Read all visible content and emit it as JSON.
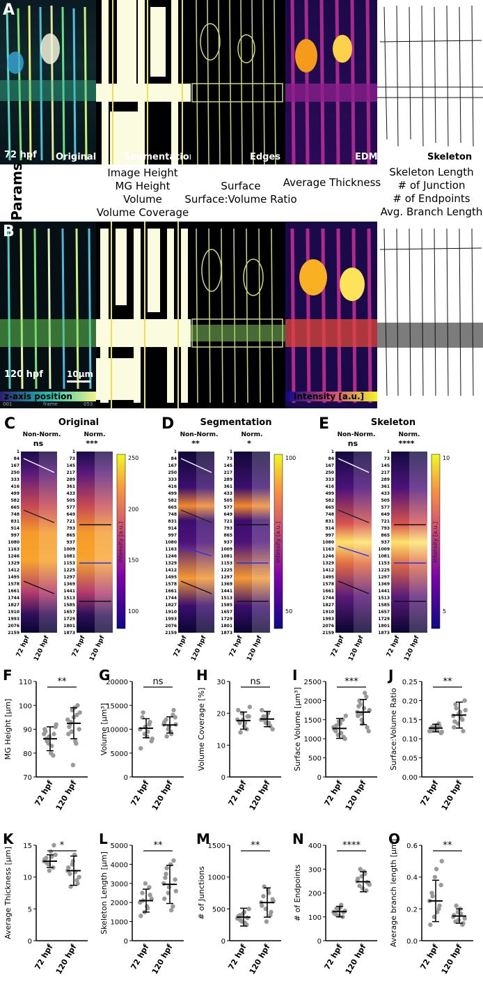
{
  "panels": {
    "A": "A",
    "B": "B",
    "C": "C",
    "D": "D",
    "E": "E",
    "F": "F",
    "G": "G",
    "H": "H",
    "I": "I",
    "J": "J",
    "K": "K",
    "L": "L",
    "M": "M",
    "N": "N",
    "O": "O"
  },
  "rowA": {
    "time": "72 hpf",
    "labels": [
      "Original",
      "Segmentation",
      "Edges",
      "EDM",
      "Skeleton"
    ]
  },
  "rowB": {
    "time": "120 hpf",
    "scale": "10µm",
    "zaxis": "z-axis position",
    "intensity": "Intensity [a.u.]",
    "frame_start": "001",
    "frame_mid": "frame",
    "frame_end": "053"
  },
  "params": {
    "title": "Params",
    "col1": [
      "Image Height",
      "MG Height",
      "Volume",
      "Volume Coverage"
    ],
    "col2": [
      "Surface",
      "Surface:Volume Ratio"
    ],
    "col3": [
      "Average Thickness"
    ],
    "col4": [
      "Skeleton Length",
      "# of Junction",
      "# of Endpoints",
      "Avg. Branch Length"
    ]
  },
  "heatmaps": [
    {
      "title": "Original",
      "sub_left": "Non-Norm.",
      "sub_right": "Norm.",
      "sig_left": "ns",
      "sig_right": "***",
      "colorbar_ticks": [
        "250",
        "200",
        "150",
        "100"
      ],
      "colorbar_label": "Intensity [a.u.]"
    },
    {
      "title": "Segmentation",
      "sub_left": "Non-Norm.",
      "sub_right": "Norm.",
      "sig_left": "**",
      "sig_right": "*",
      "colorbar_ticks": [
        "100",
        "50"
      ],
      "colorbar_label": "Intensity [a.u.]"
    },
    {
      "title": "Skeleton",
      "sub_left": "Non-Norm.",
      "sub_right": "Norm.",
      "sig_left": "ns",
      "sig_right": "****",
      "colorbar_ticks": [
        "10",
        "5"
      ],
      "colorbar_label": "Intensity [a.u.]"
    }
  ],
  "hm_left_ticks": [
    "1",
    "84",
    "167",
    "250",
    "333",
    "416",
    "499",
    "582",
    "665",
    "748",
    "831",
    "914",
    "997",
    "1080",
    "1163",
    "1246",
    "1329",
    "1412",
    "1495",
    "1578",
    "1661",
    "1744",
    "1827",
    "1910",
    "1993",
    "2076",
    "2159"
  ],
  "hm_right_ticks": [
    "1",
    "73",
    "145",
    "217",
    "289",
    "361",
    "433",
    "505",
    "577",
    "649",
    "721",
    "793",
    "865",
    "937",
    "1009",
    "1081",
    "1153",
    "1225",
    "1297",
    "1369",
    "1441",
    "1513",
    "1585",
    "1657",
    "1729",
    "1801",
    "1873"
  ],
  "group_labels": [
    "72 hpf",
    "120 hpf"
  ],
  "chart_data": [
    {
      "type": "scatter",
      "panel": "F",
      "ylabel": "MG Height [µm]",
      "ylim": [
        70,
        110
      ],
      "yticks": [
        "70",
        "80",
        "90",
        "100",
        "110"
      ],
      "sig": "**",
      "categories": [
        "72 hpf",
        "120 hpf"
      ],
      "series": [
        {
          "values": [
            88,
            86,
            84,
            80,
            79,
            91,
            90,
            85,
            87,
            83,
            88,
            92,
            89,
            86
          ]
        },
        {
          "values": [
            94,
            92,
            98,
            99,
            96,
            90,
            88,
            93,
            75,
            85,
            100,
            97,
            91,
            89,
            95,
            84
          ]
        }
      ],
      "mean": [
        86,
        92.5
      ],
      "sd": [
        5,
        6.5
      ]
    },
    {
      "type": "scatter",
      "panel": "G",
      "ylabel": "Volume [µm³]",
      "ylim": [
        0,
        20000
      ],
      "yticks": [
        "0",
        "5000",
        "10000",
        "15000",
        "20000"
      ],
      "sig": "ns",
      "categories": [
        "72 hpf",
        "120 hpf"
      ],
      "series": [
        {
          "values": [
            10000,
            12500,
            9000,
            8500,
            11000,
            7500,
            6000,
            13500,
            10500,
            9500,
            11500,
            8000
          ]
        },
        {
          "values": [
            11000,
            12000,
            10000,
            9500,
            13000,
            12500,
            11500,
            8500,
            10500,
            9000,
            14000,
            11000
          ]
        }
      ],
      "mean": [
        10200,
        10900
      ],
      "sd": [
        2000,
        1700
      ]
    },
    {
      "type": "scatter",
      "panel": "H",
      "ylabel": "Volume Coverage [%]",
      "ylim": [
        0,
        30
      ],
      "yticks": [
        "0",
        "10",
        "20",
        "30"
      ],
      "sig": "ns",
      "categories": [
        "72 hpf",
        "120 hpf"
      ],
      "series": [
        {
          "values": [
            18,
            17,
            20,
            16,
            15,
            19,
            21,
            14,
            18,
            17,
            19,
            22
          ]
        },
        {
          "values": [
            18,
            19,
            17,
            20,
            16,
            15,
            21,
            18,
            19,
            17
          ]
        }
      ],
      "mean": [
        17.7,
        18.2
      ],
      "sd": [
        2.7,
        2.4
      ]
    },
    {
      "type": "scatter",
      "panel": "I",
      "ylabel": "Surface Volume [µm³]",
      "ylim": [
        0,
        2500
      ],
      "yticks": [
        "0",
        "500",
        "1000",
        "1500",
        "2000",
        "2500"
      ],
      "sig": "***",
      "categories": [
        "72 hpf",
        "120 hpf"
      ],
      "series": [
        {
          "values": [
            1300,
            1200,
            1100,
            1400,
            1500,
            1000,
            1250,
            1350,
            1450,
            1150,
            1050,
            1600
          ]
        },
        {
          "values": [
            1700,
            2000,
            1500,
            1800,
            2100,
            1200,
            1600,
            1900,
            1400,
            2200,
            1300,
            1750,
            1850,
            1650
          ]
        }
      ],
      "mean": [
        1270,
        1700
      ],
      "sd": [
        260,
        330
      ]
    },
    {
      "type": "scatter",
      "panel": "J",
      "ylabel": "Surface:Volume Ratio",
      "ylim": [
        0,
        0.25
      ],
      "yticks": [
        "0.00",
        "0.05",
        "0.10",
        "0.15",
        "0.20",
        "0.25"
      ],
      "sig": "**",
      "categories": [
        "72 hpf",
        "120 hpf"
      ],
      "series": [
        {
          "values": [
            0.12,
            0.13,
            0.125,
            0.135,
            0.14,
            0.115,
            0.12,
            0.13,
            0.128,
            0.122,
            0.133,
            0.118
          ]
        },
        {
          "values": [
            0.16,
            0.19,
            0.14,
            0.17,
            0.15,
            0.2,
            0.13,
            0.18,
            0.165,
            0.155,
            0.12,
            0.175,
            0.145
          ]
        }
      ],
      "mean": [
        0.128,
        0.162
      ],
      "sd": [
        0.01,
        0.034
      ]
    },
    {
      "type": "scatter",
      "panel": "K",
      "ylabel": "Average Thickness [µm]",
      "ylim": [
        0,
        15
      ],
      "yticks": [
        "0",
        "5",
        "10",
        "15"
      ],
      "sig": "*",
      "categories": [
        "72 hpf",
        "120 hpf"
      ],
      "series": [
        {
          "values": [
            12.5,
            13,
            12,
            14,
            11.5,
            13.5,
            12.8,
            12.2,
            11,
            13.2,
            15
          ]
        },
        {
          "values": [
            11,
            10.5,
            12,
            13.5,
            9.5,
            10,
            11.5,
            8.5,
            12.5,
            10.8,
            9
          ]
        }
      ],
      "mean": [
        12.5,
        11
      ],
      "sd": [
        1,
        2.3
      ]
    },
    {
      "type": "scatter",
      "panel": "L",
      "ylabel": "Skeleton Length [µm]",
      "ylim": [
        0,
        5000
      ],
      "yticks": [
        "0",
        "1000",
        "2000",
        "3000",
        "4000",
        "5000"
      ],
      "sig": "**",
      "categories": [
        "72 hpf",
        "120 hpf"
      ],
      "series": [
        {
          "values": [
            2000,
            2500,
            1500,
            1800,
            2800,
            2200,
            1300,
            2100,
            3000,
            1700,
            2400
          ]
        },
        {
          "values": [
            3000,
            3500,
            2500,
            4000,
            1800,
            3200,
            2200,
            3800,
            2800,
            1600,
            4200,
            2600,
            3300
          ]
        }
      ],
      "mean": [
        2100,
        2950
      ],
      "sd": [
        600,
        1000
      ]
    },
    {
      "type": "scatter",
      "panel": "M",
      "ylabel": "# of Junctions",
      "ylim": [
        0,
        1500
      ],
      "yticks": [
        "0",
        "500",
        "1000",
        "1500"
      ],
      "sig": "**",
      "categories": [
        "72 hpf",
        "120 hpf"
      ],
      "series": [
        {
          "values": [
            350,
            400,
            300,
            450,
            250,
            500,
            380,
            320,
            420,
            280,
            360
          ]
        },
        {
          "values": [
            600,
            700,
            500,
            800,
            400,
            650,
            550,
            850,
            300,
            750,
            450,
            620
          ]
        }
      ],
      "mean": [
        370,
        600
      ],
      "sd": [
        140,
        230
      ]
    },
    {
      "type": "scatter",
      "panel": "N",
      "ylabel": "# of Endpoints",
      "ylim": [
        0,
        400
      ],
      "yticks": [
        "0",
        "100",
        "200",
        "300",
        "400"
      ],
      "sig": "****",
      "categories": [
        "72 hpf",
        "120 hpf"
      ],
      "series": [
        {
          "values": [
            120,
            110,
            130,
            140,
            100,
            125,
            115,
            135,
            105,
            150,
            120
          ]
        },
        {
          "values": [
            250,
            230,
            270,
            290,
            210,
            240,
            260,
            300,
            220,
            280,
            245,
            235
          ]
        }
      ],
      "mean": [
        122,
        247
      ],
      "sd": [
        22,
        42
      ]
    },
    {
      "type": "scatter",
      "panel": "O",
      "ylabel": "Average branch length [µm]",
      "ylim": [
        0,
        0.6
      ],
      "yticks": [
        "0.0",
        "0.2",
        "0.4",
        "0.6"
      ],
      "sig": "**",
      "categories": [
        "72 hpf",
        "120 hpf"
      ],
      "series": [
        {
          "values": [
            0.25,
            0.3,
            0.15,
            0.45,
            0.2,
            0.35,
            0.1,
            0.28,
            0.4,
            0.18,
            0.22,
            0.5
          ]
        },
        {
          "values": [
            0.15,
            0.12,
            0.18,
            0.2,
            0.1,
            0.14,
            0.16,
            0.22,
            0.13,
            0.17,
            0.11
          ]
        }
      ],
      "mean": [
        0.25,
        0.155
      ],
      "sd": [
        0.13,
        0.045
      ]
    }
  ]
}
